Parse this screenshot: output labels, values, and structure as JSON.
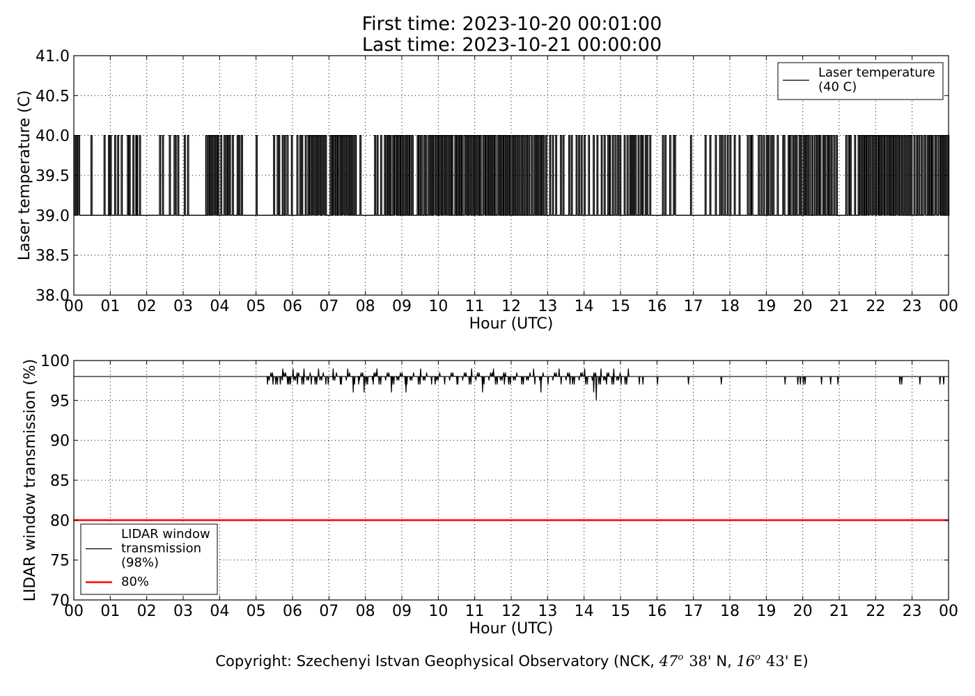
{
  "header": {
    "title_line1": "First time: 2023-10-20 00:01:00",
    "title_line2": "Last time: 2023-10-21 00:00:00"
  },
  "footer": {
    "copyright_prefix": "Copyright: Szechenyi Istvan Geophysical Observatory (NCK, ",
    "lat_deg": "47",
    "lat_min": "38",
    "lat_suffix": "' N, ",
    "lon_deg": "16",
    "lon_min": "43",
    "lon_suffix": "' E)",
    "degree_mark": "o"
  },
  "chart_data": [
    {
      "type": "line",
      "xlabel": "Hour (UTC)",
      "ylabel": "Laser temperature (C)",
      "xlim": [
        0,
        24
      ],
      "ylim": [
        38.0,
        41.0
      ],
      "xticks": [
        0,
        1,
        2,
        3,
        4,
        5,
        6,
        7,
        8,
        9,
        10,
        11,
        12,
        13,
        14,
        15,
        16,
        17,
        18,
        19,
        20,
        21,
        22,
        23,
        24
      ],
      "xtick_labels": [
        "00",
        "01",
        "02",
        "03",
        "04",
        "05",
        "06",
        "07",
        "08",
        "09",
        "10",
        "11",
        "12",
        "13",
        "14",
        "15",
        "16",
        "17",
        "18",
        "19",
        "20",
        "21",
        "22",
        "23",
        "00"
      ],
      "yticks": [
        38.0,
        38.5,
        39.0,
        39.5,
        40.0,
        40.5,
        41.0
      ],
      "ytick_labels": [
        "38.0",
        "38.5",
        "39.0",
        "39.5",
        "40.0",
        "40.5",
        "41.0"
      ],
      "grid": true,
      "legend_position": "top-right",
      "series": [
        {
          "name": "Laser temperature\n(40 C)",
          "color": "#000000",
          "baseline": 39.0,
          "high": 40.0,
          "spike_hours": [
            0.02,
            0.05,
            0.1,
            0.13,
            0.47,
            0.83,
            0.95,
            1.0,
            1.12,
            1.2,
            1.3,
            1.47,
            1.52,
            1.62,
            1.7,
            1.72,
            1.8,
            2.35,
            2.43,
            2.62,
            2.75,
            2.78,
            2.85,
            3.03,
            3.12,
            3.62,
            3.68,
            3.73,
            3.78,
            3.82,
            3.85,
            3.9,
            3.95,
            4.03,
            4.12,
            4.18,
            4.23,
            4.27,
            4.35,
            4.48,
            4.53,
            4.6,
            5.0,
            5.48,
            5.58,
            5.62,
            5.72,
            5.78,
            5.85,
            5.97,
            6.12,
            6.2,
            6.25,
            6.35,
            6.42,
            6.47,
            6.5,
            6.55,
            6.58,
            6.62,
            6.67,
            6.7,
            6.73,
            6.77,
            6.82,
            6.85,
            6.9,
            7.03,
            7.07,
            7.12,
            7.15,
            7.2,
            7.25,
            7.28,
            7.32,
            7.37,
            7.4,
            7.45,
            7.48,
            7.53,
            7.57,
            7.62,
            7.68,
            7.72,
            7.85,
            8.25,
            8.32,
            8.42,
            8.52,
            8.58,
            8.63,
            8.68,
            8.75,
            8.8,
            8.83,
            8.88,
            8.92,
            8.97,
            9.02,
            9.08,
            9.12,
            9.17,
            9.22,
            9.28,
            9.42,
            9.47,
            9.53,
            9.6,
            9.65,
            9.72,
            9.75,
            9.8,
            9.83,
            9.87,
            9.9,
            9.93,
            9.97,
            10.02,
            10.05,
            10.08,
            10.12,
            10.15,
            10.2,
            10.23,
            10.28,
            10.32,
            10.37,
            10.45,
            10.5,
            10.55,
            10.6,
            10.65,
            10.72,
            10.75,
            10.8,
            10.85,
            10.88,
            10.92,
            10.97,
            11.02,
            11.05,
            11.1,
            11.15,
            11.22,
            11.25,
            11.3,
            11.35,
            11.4,
            11.45,
            11.5,
            11.55,
            11.62,
            11.65,
            11.7,
            11.75,
            11.8,
            11.85,
            11.88,
            11.92,
            11.97,
            12.03,
            12.08,
            12.12,
            12.18,
            12.22,
            12.28,
            12.32,
            12.38,
            12.42,
            12.48,
            12.55,
            12.62,
            12.67,
            12.72,
            12.78,
            12.83,
            12.88,
            12.95,
            13.05,
            13.13,
            13.22,
            13.35,
            13.42,
            13.58,
            13.65,
            13.78,
            13.85,
            13.92,
            14.0,
            14.12,
            14.25,
            14.35,
            14.47,
            14.55,
            14.65,
            14.7,
            14.78,
            14.85,
            14.92,
            14.98,
            15.1,
            15.18,
            15.25,
            15.3,
            15.35,
            15.4,
            15.48,
            15.55,
            15.6,
            15.68,
            15.72,
            15.8,
            16.15,
            16.22,
            16.35,
            16.45,
            16.48,
            16.92,
            17.32,
            17.45,
            17.6,
            17.72,
            17.78,
            17.85,
            17.93,
            18.0,
            18.12,
            18.25,
            18.48,
            18.55,
            18.6,
            18.78,
            18.85,
            18.92,
            19.0,
            19.05,
            19.12,
            19.18,
            19.3,
            19.45,
            19.48,
            19.6,
            19.65,
            19.72,
            19.78,
            19.82,
            19.9,
            19.95,
            20.02,
            20.07,
            20.12,
            20.18,
            20.25,
            20.32,
            20.38,
            20.42,
            20.47,
            20.55,
            20.6,
            20.67,
            20.72,
            20.78,
            20.85,
            20.92,
            21.18,
            21.25,
            21.3,
            21.42,
            21.52,
            21.57,
            21.6,
            21.65,
            21.7,
            21.75,
            21.78,
            21.82,
            21.85,
            21.88,
            21.92,
            21.95,
            21.98,
            22.02,
            22.05,
            22.1,
            22.13,
            22.17,
            22.2,
            22.25,
            22.28,
            22.32,
            22.35,
            22.4,
            22.45,
            22.5,
            22.55,
            22.58,
            22.62,
            22.68,
            22.72,
            22.78,
            22.82,
            22.88,
            22.92,
            22.97,
            23.05,
            23.12,
            23.18,
            23.25,
            23.32,
            23.35,
            23.42,
            23.47,
            23.5,
            23.55,
            23.62,
            23.65,
            23.72,
            23.75,
            23.8,
            23.85,
            23.88,
            23.92,
            23.95,
            23.98
          ]
        }
      ]
    },
    {
      "type": "line",
      "xlabel": "Hour (UTC)",
      "ylabel": "LIDAR window transmission (%)",
      "xlim": [
        0,
        24
      ],
      "ylim": [
        70,
        100
      ],
      "xticks": [
        0,
        1,
        2,
        3,
        4,
        5,
        6,
        7,
        8,
        9,
        10,
        11,
        12,
        13,
        14,
        15,
        16,
        17,
        18,
        19,
        20,
        21,
        22,
        23,
        24
      ],
      "xtick_labels": [
        "00",
        "01",
        "02",
        "03",
        "04",
        "05",
        "06",
        "07",
        "08",
        "09",
        "10",
        "11",
        "12",
        "13",
        "14",
        "15",
        "16",
        "17",
        "18",
        "19",
        "20",
        "21",
        "22",
        "23",
        "00"
      ],
      "yticks": [
        70,
        75,
        80,
        85,
        90,
        95,
        100
      ],
      "ytick_labels": [
        "70",
        "75",
        "80",
        "85",
        "90",
        "95",
        "100"
      ],
      "grid": true,
      "legend_position": "lower-left",
      "series": [
        {
          "name": "LIDAR window\ntransmission\n(98%)",
          "color": "#000000",
          "baseline": 98,
          "noisy_range_hours": [
            5.3,
            15.2
          ],
          "deviations": [
            {
              "x": 5.3,
              "y": 97
            },
            {
              "x": 5.45,
              "y": 97
            },
            {
              "x": 5.65,
              "y": 97
            },
            {
              "x": 5.72,
              "y": 99
            },
            {
              "x": 5.85,
              "y": 97
            },
            {
              "x": 6.0,
              "y": 99
            },
            {
              "x": 6.12,
              "y": 97
            },
            {
              "x": 6.3,
              "y": 99
            },
            {
              "x": 6.5,
              "y": 97
            },
            {
              "x": 6.7,
              "y": 99
            },
            {
              "x": 6.9,
              "y": 97
            },
            {
              "x": 7.1,
              "y": 99
            },
            {
              "x": 7.3,
              "y": 97
            },
            {
              "x": 7.5,
              "y": 99
            },
            {
              "x": 7.65,
              "y": 96
            },
            {
              "x": 7.8,
              "y": 97
            },
            {
              "x": 7.95,
              "y": 96
            },
            {
              "x": 8.2,
              "y": 97
            },
            {
              "x": 8.3,
              "y": 99
            },
            {
              "x": 8.7,
              "y": 96
            },
            {
              "x": 9.1,
              "y": 96
            },
            {
              "x": 9.5,
              "y": 99
            },
            {
              "x": 9.9,
              "y": 97
            },
            {
              "x": 10.5,
              "y": 97
            },
            {
              "x": 10.9,
              "y": 99
            },
            {
              "x": 11.2,
              "y": 96
            },
            {
              "x": 11.5,
              "y": 99
            },
            {
              "x": 11.8,
              "y": 97
            },
            {
              "x": 12.6,
              "y": 99
            },
            {
              "x": 12.8,
              "y": 96
            },
            {
              "x": 13.3,
              "y": 99
            },
            {
              "x": 13.6,
              "y": 97
            },
            {
              "x": 14.0,
              "y": 99
            },
            {
              "x": 14.25,
              "y": 96
            },
            {
              "x": 14.32,
              "y": 95
            },
            {
              "x": 14.45,
              "y": 99
            },
            {
              "x": 14.6,
              "y": 97
            },
            {
              "x": 14.8,
              "y": 99
            },
            {
              "x": 15.0,
              "y": 97
            },
            {
              "x": 15.2,
              "y": 99
            },
            {
              "x": 15.5,
              "y": 97
            },
            {
              "x": 15.6,
              "y": 97
            },
            {
              "x": 16.0,
              "y": 97
            },
            {
              "x": 16.85,
              "y": 97
            },
            {
              "x": 17.75,
              "y": 97
            },
            {
              "x": 19.5,
              "y": 97
            },
            {
              "x": 19.85,
              "y": 97
            },
            {
              "x": 19.92,
              "y": 97
            },
            {
              "x": 20.0,
              "y": 97
            },
            {
              "x": 20.05,
              "y": 97
            },
            {
              "x": 20.5,
              "y": 97
            },
            {
              "x": 20.75,
              "y": 97
            },
            {
              "x": 20.95,
              "y": 97
            },
            {
              "x": 22.65,
              "y": 97
            },
            {
              "x": 22.7,
              "y": 97
            },
            {
              "x": 23.2,
              "y": 97
            },
            {
              "x": 23.75,
              "y": 97
            },
            {
              "x": 23.85,
              "y": 97
            }
          ]
        },
        {
          "name": "80%",
          "color": "#ff0000",
          "constant": 80
        }
      ]
    }
  ]
}
